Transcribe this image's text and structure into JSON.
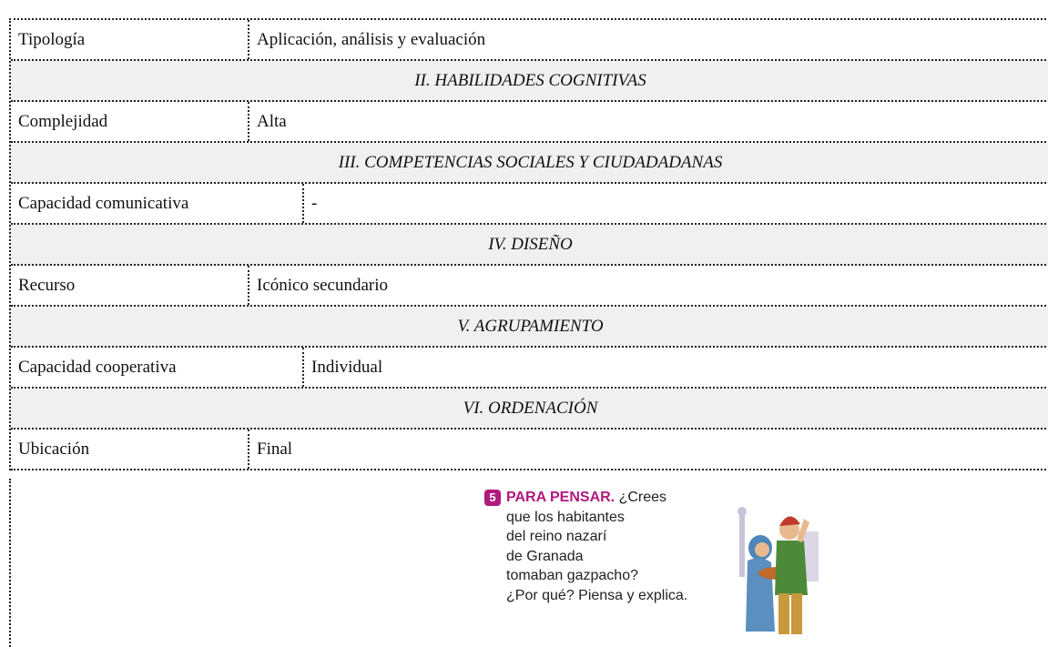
{
  "table": {
    "rows": [
      {
        "label": "Tipología",
        "value": "Aplicación, análisis y evaluación"
      },
      {
        "heading": "II. HABILIDADES COGNITIVAS"
      },
      {
        "label": "Complejidad",
        "value": "Alta"
      },
      {
        "heading": "III. COMPETENCIAS SOCIALES Y CIUDADADANAS"
      },
      {
        "label": "Capacidad comunicativa",
        "value": "-"
      },
      {
        "heading": "IV. DISEÑO"
      },
      {
        "label": "Recurso",
        "value": "Icónico secundario"
      },
      {
        "heading": "V. AGRUPAMIENTO"
      },
      {
        "label": "Capacidad cooperativa",
        "value": "Individual"
      },
      {
        "heading": "VI. ORDENACIÓN"
      },
      {
        "label": "Ubicación",
        "value": "Final"
      }
    ]
  },
  "exercise": {
    "number": "5",
    "label": "PARA PENSAR.",
    "lines": [
      "¿Crees",
      "que los habitantes",
      "del reino nazarí",
      "de Granada",
      "tomaban gazpacho?",
      "¿Por qué? Piensa y explica."
    ]
  }
}
